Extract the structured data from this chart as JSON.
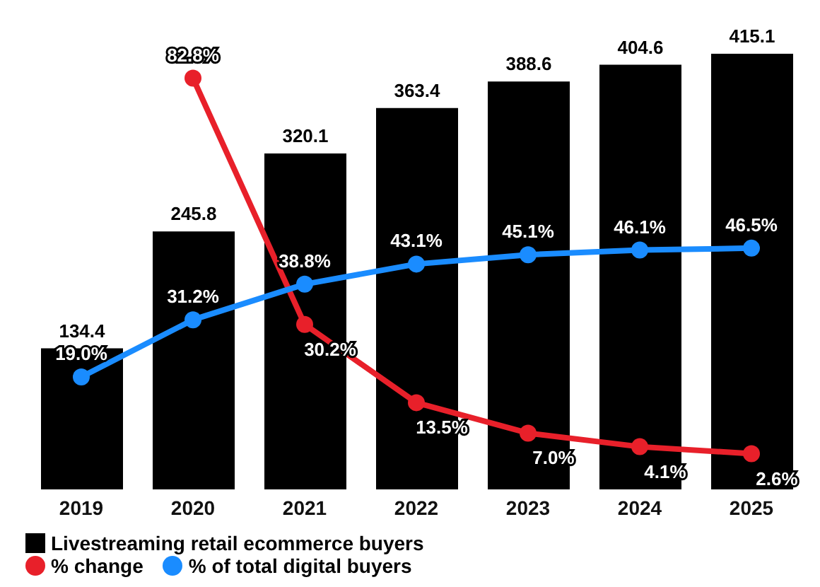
{
  "chart_data": {
    "type": "bar",
    "categories": [
      "2019",
      "2020",
      "2021",
      "2022",
      "2023",
      "2024",
      "2025"
    ],
    "series": [
      {
        "name": "Livestreaming retail ecommerce buyers",
        "color": "#000000",
        "values": [
          134.4,
          245.8,
          320.1,
          363.4,
          388.6,
          404.6,
          415.1
        ],
        "value_labels": [
          "134.4",
          "245.8",
          "320.1",
          "363.4",
          "388.6",
          "404.6",
          "415.1"
        ]
      },
      {
        "name": "% change",
        "type": "line",
        "axis": "y2",
        "color": "#e8202a",
        "values": [
          null,
          82.8,
          30.2,
          13.5,
          7.0,
          4.1,
          2.6
        ],
        "value_labels": [
          null,
          "82.8%",
          "30.2%",
          "13.5%",
          "7.0%",
          "4.1%",
          "2.6%"
        ]
      },
      {
        "name": "% of total digital buyers",
        "type": "line",
        "axis": "y2",
        "color": "#1a8cff",
        "values": [
          19.0,
          31.2,
          38.8,
          43.1,
          45.1,
          46.1,
          46.5
        ],
        "value_labels": [
          "19.0%",
          "31.2%",
          "38.8%",
          "43.1%",
          "45.1%",
          "46.1%",
          "46.5%"
        ]
      }
    ],
    "tick_labels": "x",
    "legend": "bottom left",
    "marker": "circle",
    "line_style": "solid"
  }
}
